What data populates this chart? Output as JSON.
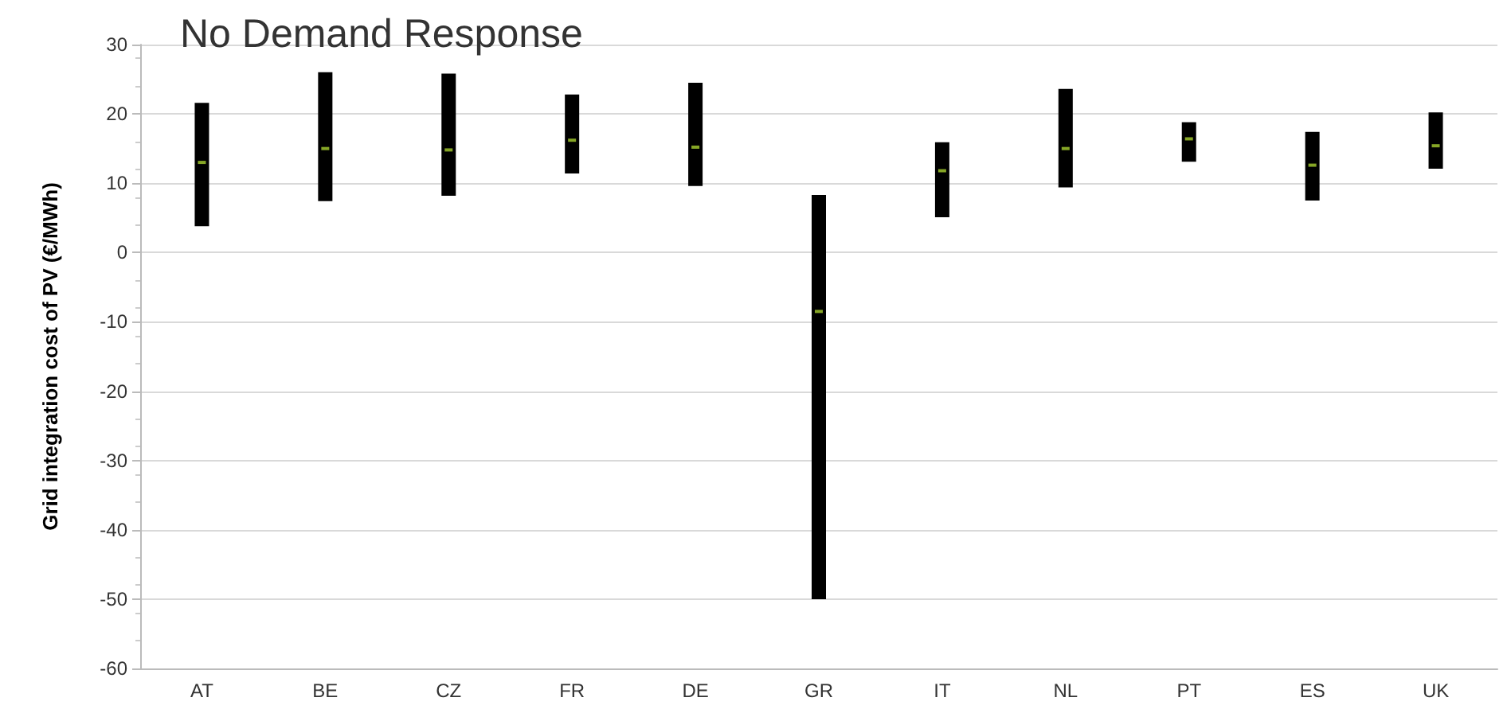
{
  "chart_data": {
    "type": "bar",
    "title": "No Demand Response",
    "ylabel": "Grid integration cost of PV (€/MWh)",
    "categories": [
      "AT",
      "BE",
      "CZ",
      "FR",
      "DE",
      "GR",
      "IT",
      "NL",
      "PT",
      "ES",
      "UK"
    ],
    "series": [
      {
        "color": "#000000",
        "base": [
          3.8,
          7.4,
          8.2,
          11.4,
          9.6,
          -50,
          5.1,
          9.4,
          13.1,
          7.5,
          12.1
        ],
        "values": [
          17.8,
          18.6,
          17.6,
          11.4,
          14.9,
          58.3,
          10.8,
          14.2,
          5.7,
          9.9,
          8.1
        ]
      },
      {
        "type": "scatter",
        "color": "#a8d030",
        "x": [
          "AT",
          "BE",
          "CZ",
          "FR",
          "DE",
          "GR",
          "IT",
          "NL",
          "PT",
          "ES",
          "UK"
        ],
        "values": [
          13.0,
          15.0,
          14.8,
          16.2,
          15.2,
          -8.5,
          11.8,
          15.0,
          16.4,
          12.6,
          15.4
        ]
      }
    ],
    "ylim": [
      -60,
      30
    ],
    "yticks": [
      -60,
      -50,
      -40,
      -30,
      -20,
      -10,
      0,
      10,
      20,
      30
    ],
    "grid": "y",
    "marker": "square"
  }
}
